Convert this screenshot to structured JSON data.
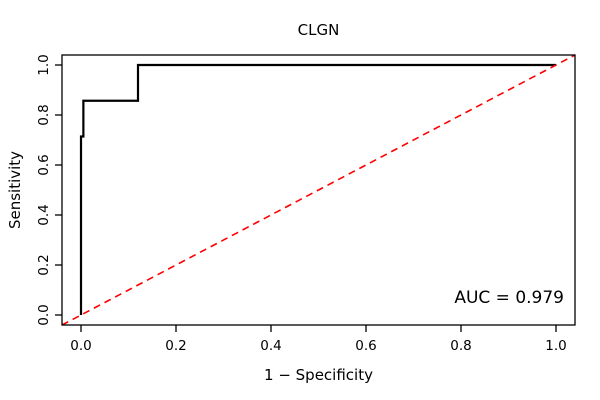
{
  "chart_data": {
    "type": "line",
    "title": "CLGN",
    "xlabel": "1 − Specificity",
    "ylabel": "Sensitivity",
    "annotation": "AUC = 0.979",
    "auc_value": 0.979,
    "xlim": [
      -0.04,
      1.04
    ],
    "ylim": [
      -0.04,
      1.04
    ],
    "tick_values": [
      0.0,
      0.2,
      0.4,
      0.6,
      0.8,
      1.0
    ],
    "x_tick_labels": [
      "0.0",
      "0.2",
      "0.4",
      "0.6",
      "0.8",
      "1.0"
    ],
    "y_tick_labels": [
      "0.0",
      "0.2",
      "0.4",
      "0.6",
      "0.8",
      "1.0"
    ],
    "grid": false,
    "legend": "none",
    "series": [
      {
        "id": "roc-curve",
        "name": "ROC curve (CLGN)",
        "color": "#000000",
        "width": 2.2,
        "style": "solid",
        "points": [
          [
            0.0,
            0.0
          ],
          [
            0.0,
            0.714
          ],
          [
            0.005,
            0.714
          ],
          [
            0.005,
            0.857
          ],
          [
            0.12,
            0.857
          ],
          [
            0.12,
            1.0
          ],
          [
            1.0,
            1.0
          ]
        ]
      },
      {
        "id": "chance-diagonal",
        "name": "Chance reference line",
        "color": "#ff0000",
        "width": 1.6,
        "style": "dashed",
        "points": [
          [
            -0.04,
            -0.04
          ],
          [
            1.04,
            1.04
          ]
        ]
      }
    ]
  }
}
